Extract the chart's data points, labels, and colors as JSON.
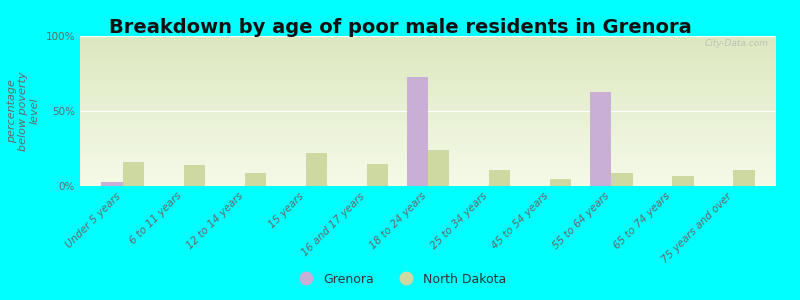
{
  "title": "Breakdown by age of poor male residents in Grenora",
  "ylabel": "percentage\nbelow poverty\nlevel",
  "categories": [
    "Under 5 years",
    "6 to 11 years",
    "12 to 14 years",
    "15 years",
    "16 and 17 years",
    "18 to 24 years",
    "25 to 34 years",
    "45 to 54 years",
    "55 to 64 years",
    "65 to 74 years",
    "75 years and over"
  ],
  "grenora_values": [
    3,
    0,
    0,
    0,
    0,
    73,
    0,
    0,
    63,
    0,
    0
  ],
  "nd_values": [
    16,
    14,
    9,
    22,
    15,
    24,
    11,
    5,
    9,
    7,
    11
  ],
  "grenora_color": "#c9aed6",
  "nd_color": "#cdd9a0",
  "background_color": "#00ffff",
  "plot_bg_top": "#dce8c0",
  "plot_bg_bottom": "#f5fae8",
  "ylim": [
    0,
    100
  ],
  "yticks": [
    0,
    50,
    100
  ],
  "ytick_labels": [
    "0%",
    "50%",
    "100%"
  ],
  "bar_width": 0.35,
  "title_fontsize": 14,
  "axis_label_fontsize": 8,
  "tick_fontsize": 7.5,
  "legend_labels": [
    "Grenora",
    "North Dakota"
  ],
  "watermark": "City-Data.com"
}
